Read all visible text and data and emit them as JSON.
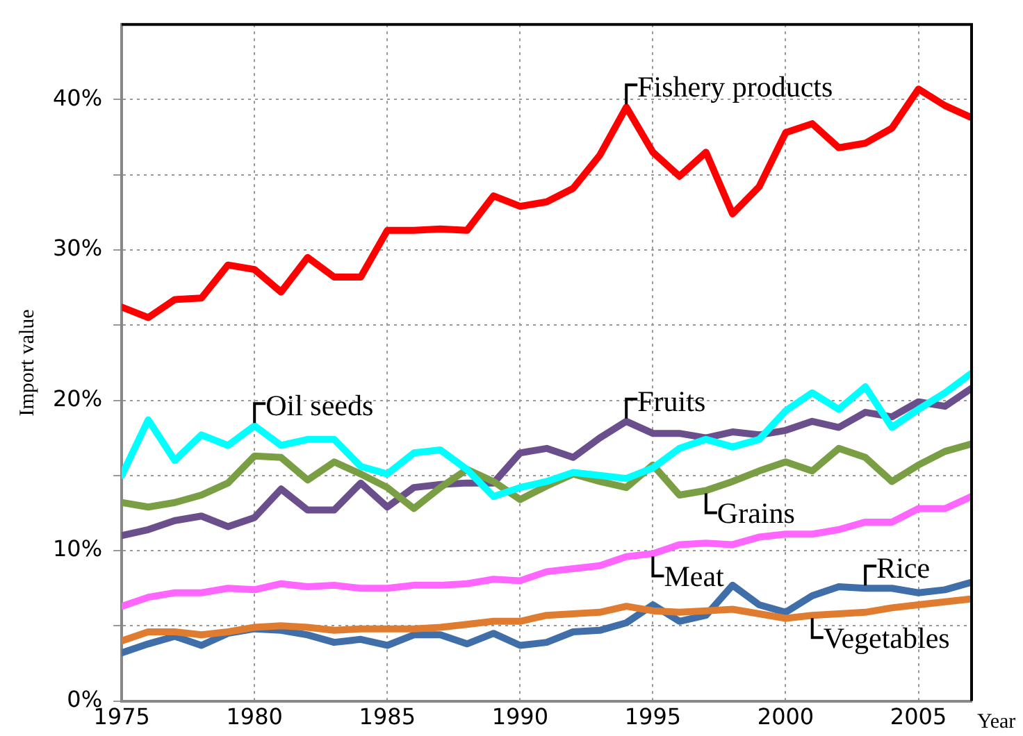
{
  "chart_data": {
    "type": "line",
    "ylabel": "Import value",
    "xlabel": "Year",
    "x": [
      1975,
      1976,
      1977,
      1978,
      1979,
      1980,
      1981,
      1982,
      1983,
      1984,
      1985,
      1986,
      1987,
      1988,
      1989,
      1990,
      1991,
      1992,
      1993,
      1994,
      1995,
      1996,
      1997,
      1998,
      1999,
      2000,
      2001,
      2002,
      2003,
      2004,
      2005,
      2006,
      2007
    ],
    "xlim": [
      1975,
      2007
    ],
    "xticks": [
      1975,
      1980,
      1985,
      1990,
      1995,
      2000,
      2005
    ],
    "ylim": [
      0,
      45
    ],
    "yticks": [
      {
        "value": 0,
        "label": "0%"
      },
      {
        "value": 5,
        "label": null
      },
      {
        "value": 10,
        "label": "10%"
      },
      {
        "value": 15,
        "label": null
      },
      {
        "value": 20,
        "label": "20%"
      },
      {
        "value": 25,
        "label": null
      },
      {
        "value": 30,
        "label": "30%"
      },
      {
        "value": 35,
        "label": null
      },
      {
        "value": 40,
        "label": "40%"
      }
    ],
    "grid": true,
    "legend": false,
    "marker": "none",
    "line_style": "solid",
    "series": [
      {
        "color": "#ff0000",
        "values": [
          26.2,
          25.5,
          26.7,
          26.8,
          29.0,
          28.7,
          27.2,
          29.5,
          28.2,
          28.2,
          31.3,
          31.3,
          31.4,
          31.3,
          33.6,
          32.9,
          33.2,
          34.1,
          36.3,
          39.5,
          36.5,
          34.9,
          36.5,
          32.4,
          34.2,
          37.8,
          38.4,
          36.8,
          37.1,
          38.1,
          40.7,
          39.6,
          38.8
        ]
      },
      {
        "color": "#00ffff",
        "values": [
          15.0,
          18.7,
          16.0,
          17.7,
          17.0,
          18.3,
          17.0,
          17.4,
          17.4,
          15.6,
          15.1,
          16.5,
          16.7,
          15.4,
          13.6,
          14.2,
          14.6,
          15.2,
          15.0,
          14.8,
          15.5,
          16.8,
          17.4,
          16.9,
          17.4,
          19.3,
          20.5,
          19.4,
          20.9,
          18.2,
          19.4,
          20.5,
          21.8
        ]
      },
      {
        "color": "#7a9e44",
        "values": [
          13.2,
          12.9,
          13.2,
          13.7,
          14.5,
          16.3,
          16.2,
          14.7,
          15.9,
          15.1,
          14.2,
          12.8,
          14.2,
          15.4,
          14.6,
          13.4,
          14.3,
          15.1,
          14.6,
          14.2,
          15.7,
          13.7,
          14.0,
          14.6,
          15.3,
          15.9,
          15.3,
          16.8,
          16.2,
          14.6,
          15.7,
          16.6,
          17.1
        ]
      },
      {
        "color": "#6a4f8c",
        "values": [
          11.0,
          11.4,
          12.0,
          12.3,
          11.6,
          12.2,
          14.1,
          12.7,
          12.7,
          14.5,
          12.9,
          14.2,
          14.4,
          14.5,
          14.5,
          16.5,
          16.8,
          16.2,
          17.5,
          18.6,
          17.8,
          17.8,
          17.5,
          17.9,
          17.7,
          18.0,
          18.6,
          18.2,
          19.2,
          18.9,
          19.9,
          19.6,
          20.8
        ]
      },
      {
        "color": "#ff66ff",
        "values": [
          6.3,
          6.9,
          7.2,
          7.2,
          7.5,
          7.4,
          7.8,
          7.6,
          7.7,
          7.5,
          7.5,
          7.7,
          7.7,
          7.8,
          8.1,
          8.0,
          8.6,
          8.8,
          9.0,
          9.6,
          9.8,
          10.4,
          10.5,
          10.4,
          10.9,
          11.1,
          11.1,
          11.4,
          11.9,
          11.9,
          12.8,
          12.8,
          13.6
        ]
      },
      {
        "color": "#e07c30",
        "values": [
          4.0,
          4.6,
          4.6,
          4.4,
          4.6,
          4.9,
          5.0,
          4.9,
          4.7,
          4.8,
          4.8,
          4.8,
          4.9,
          5.1,
          5.3,
          5.3,
          5.7,
          5.8,
          5.9,
          6.3,
          6.0,
          5.9,
          6.0,
          6.1,
          5.8,
          5.5,
          5.7,
          5.8,
          5.9,
          6.2,
          6.4,
          6.6,
          6.8
        ]
      },
      {
        "color": "#3f6ea8",
        "values": [
          3.2,
          3.8,
          4.3,
          3.7,
          4.5,
          4.8,
          4.7,
          4.4,
          3.9,
          4.1,
          3.7,
          4.4,
          4.4,
          3.8,
          4.5,
          3.7,
          3.9,
          4.6,
          4.7,
          5.2,
          6.4,
          5.3,
          5.7,
          7.7,
          6.4,
          5.9,
          7.0,
          7.6,
          7.5,
          7.5,
          7.2,
          7.4,
          7.9
        ]
      }
    ],
    "annotations": [
      {
        "text": "Fishery products",
        "x": 1994,
        "y": 39.5
      },
      {
        "text": "Oil seeds",
        "x": 1980,
        "y": 18.3
      },
      {
        "text": "Fruits",
        "x": 1994,
        "y": 18.6
      },
      {
        "text": "Grains",
        "x": 1997,
        "y": 14.0
      },
      {
        "text": "Meat",
        "x": 1995,
        "y": 9.8
      },
      {
        "text": "Rice",
        "x": 2003,
        "y": 7.5
      },
      {
        "text": "Vegetables",
        "x": 2001,
        "y": 5.7
      }
    ]
  }
}
